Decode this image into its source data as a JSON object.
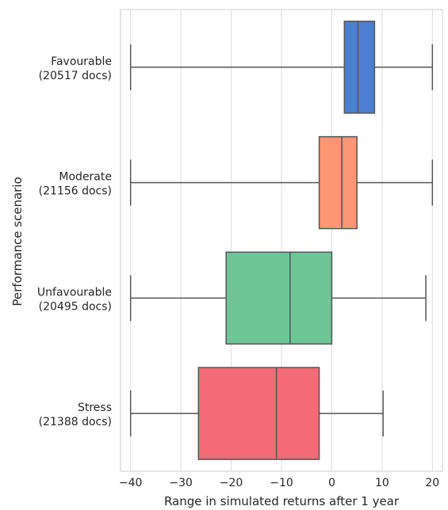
{
  "chart_data": {
    "type": "boxplot",
    "orientation": "horizontal",
    "xlabel": "Range in simulated returns after 1 year",
    "ylabel": "Performance scenario",
    "xlim": [
      -42,
      22
    ],
    "xticks": [
      -40,
      -30,
      -20,
      -10,
      0,
      10,
      20
    ],
    "grid": true,
    "categories": [
      {
        "line1": "Favourable",
        "line2": "(20517 docs)",
        "color": "#4c7fd2",
        "whisker_low": -40,
        "q1": 2.5,
        "median": 5.2,
        "q3": 8.5,
        "whisker_high": 20
      },
      {
        "line1": "Moderate",
        "line2": "(21156 docs)",
        "color": "#ff9673",
        "whisker_low": -40,
        "q1": -2.5,
        "median": 2.0,
        "q3": 5.0,
        "whisker_high": 20
      },
      {
        "line1": "Unfavourable",
        "line2": "(20495 docs)",
        "color": "#6ec596",
        "whisker_low": -40,
        "q1": -21.0,
        "median": -8.3,
        "q3": 0.0,
        "whisker_high": 18.7
      },
      {
        "line1": "Stress",
        "line2": "(21388 docs)",
        "color": "#f46a76",
        "whisker_low": -40,
        "q1": -26.5,
        "median": -11.0,
        "q3": -2.5,
        "whisker_high": 10.2
      }
    ]
  }
}
